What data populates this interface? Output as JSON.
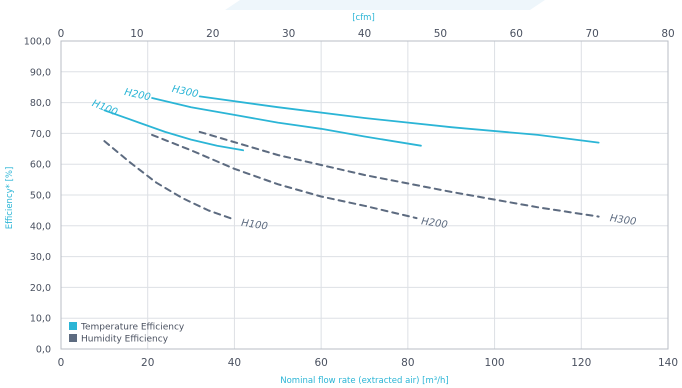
{
  "chart_data": {
    "type": "line",
    "title": "",
    "xlabel": "Nominal flow rate (extracted air) [m³/h]",
    "x2label": "[cfm]",
    "ylabel": "Efficiency* [%]",
    "xlim": [
      0,
      140
    ],
    "x2lim": [
      0,
      80
    ],
    "ylim": [
      0,
      100
    ],
    "x_ticks": [
      "0",
      "20",
      "40",
      "60",
      "80",
      "100",
      "120",
      "140"
    ],
    "x2_ticks": [
      "0",
      "10",
      "20",
      "30",
      "40",
      "50",
      "60",
      "70",
      "80"
    ],
    "y_ticks": [
      "0,0",
      "10,0",
      "20,0",
      "30,0",
      "40,0",
      "50,0",
      "60,0",
      "70,0",
      "80,0",
      "90,0",
      "100,0"
    ],
    "grid": true,
    "legend": {
      "placement": "bottom-left",
      "entries": [
        {
          "label": "Temperature Efficiency",
          "color": "#2bb5d6"
        },
        {
          "label": "Humidity Efficiency",
          "color": "#5d6b80"
        }
      ]
    },
    "series": [
      {
        "name": "H100",
        "kind": "Temperature Efficiency",
        "color": "#2bb5d6",
        "style": "solid",
        "x": [
          10,
          18,
          24,
          30,
          36,
          42
        ],
        "y": [
          77.5,
          73.5,
          70.5,
          68.0,
          66.0,
          64.5
        ]
      },
      {
        "name": "H200",
        "kind": "Temperature Efficiency",
        "color": "#2bb5d6",
        "style": "solid",
        "x": [
          21,
          30,
          40,
          50,
          60,
          70,
          83
        ],
        "y": [
          81.5,
          78.5,
          76.0,
          73.5,
          71.5,
          69.0,
          66.0
        ]
      },
      {
        "name": "H300",
        "kind": "Temperature Efficiency",
        "color": "#2bb5d6",
        "style": "solid",
        "x": [
          32,
          50,
          70,
          90,
          110,
          124
        ],
        "y": [
          82.0,
          78.5,
          75.0,
          72.0,
          69.5,
          67.0
        ]
      },
      {
        "name": "H100",
        "kind": "Humidity Efficiency",
        "color": "#5d6b80",
        "style": "dashed",
        "x": [
          10,
          16,
          22,
          28,
          34,
          40
        ],
        "y": [
          67.5,
          60.5,
          54.0,
          49.0,
          45.0,
          42.0
        ]
      },
      {
        "name": "H200",
        "kind": "Humidity Efficiency",
        "color": "#5d6b80",
        "style": "dashed",
        "x": [
          21,
          30,
          40,
          50,
          60,
          70,
          82
        ],
        "y": [
          69.5,
          64.5,
          58.5,
          53.5,
          49.5,
          46.5,
          42.5
        ]
      },
      {
        "name": "H300",
        "kind": "Humidity Efficiency",
        "color": "#5d6b80",
        "style": "dashed",
        "x": [
          32,
          50,
          70,
          90,
          110,
          124
        ],
        "y": [
          70.5,
          63.0,
          56.5,
          51.0,
          46.0,
          43.0
        ]
      }
    ],
    "curve_labels": [
      {
        "text": "H100",
        "color": "#2bb5d6",
        "x": 7.0,
        "y": 79.0
      },
      {
        "text": "H200",
        "color": "#2bb5d6",
        "x": 14.5,
        "y": 82.5
      },
      {
        "text": "H300",
        "color": "#2bb5d6",
        "x": 25.5,
        "y": 83.5
      },
      {
        "text": "H100",
        "color": "#5d6b80",
        "x": 41.5,
        "y": 40.0
      },
      {
        "text": "H200",
        "color": "#5d6b80",
        "x": 83.0,
        "y": 40.5
      },
      {
        "text": "H300",
        "color": "#5d6b80",
        "x": 126.5,
        "y": 41.5
      }
    ]
  }
}
